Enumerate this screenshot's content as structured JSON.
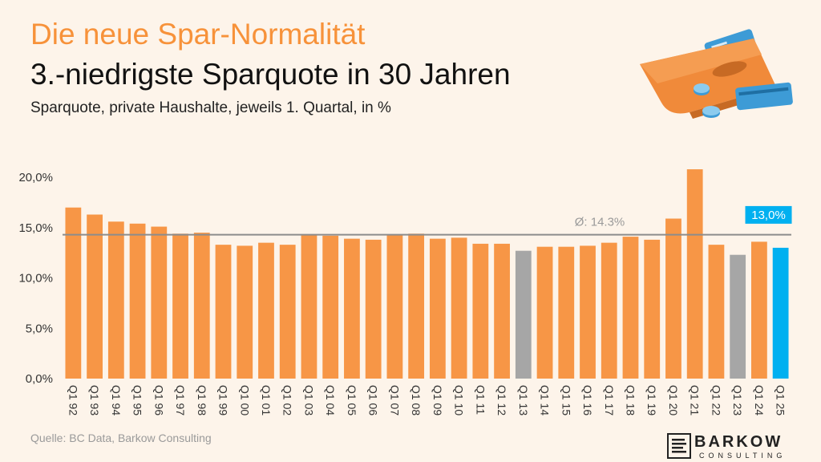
{
  "title": "Die neue Spar-Normalität",
  "headline": "3.-niedrigste Sparquote in 30 Jahren",
  "subtitle": "Sparquote, private Haushalte, jeweils 1. Quartal, in %",
  "source": "Quelle: BC Data, Barkow Consulting",
  "logo": {
    "name": "BARKOW",
    "sub": "CONSULTING"
  },
  "colors": {
    "default": "#f79646",
    "grey": "#a6a6a6",
    "highlight": "#00b0f0",
    "avgline": "#8c8c8c",
    "axis_text": "#333333"
  },
  "chart_data": {
    "type": "bar",
    "categories": [
      "Q1 92",
      "Q1 93",
      "Q1 94",
      "Q1 95",
      "Q1 96",
      "Q1 97",
      "Q1 98",
      "Q1 99",
      "Q1 00",
      "Q1 01",
      "Q1 02",
      "Q1 03",
      "Q1 04",
      "Q1 05",
      "Q1 06",
      "Q1 07",
      "Q1 08",
      "Q1 09",
      "Q1 10",
      "Q1 11",
      "Q1 12",
      "Q1 13",
      "Q1 14",
      "Q1 15",
      "Q1 16",
      "Q1 17",
      "Q1 18",
      "Q1 19",
      "Q1 20",
      "Q1 21",
      "Q1 22",
      "Q1 23",
      "Q1 24",
      "Q1 25"
    ],
    "values": [
      17.0,
      16.3,
      15.6,
      15.4,
      15.1,
      14.4,
      14.5,
      13.3,
      13.2,
      13.5,
      13.3,
      14.3,
      14.2,
      13.9,
      13.8,
      14.3,
      14.4,
      13.9,
      14.0,
      13.4,
      13.4,
      12.7,
      13.1,
      13.1,
      13.2,
      13.5,
      14.1,
      13.8,
      15.9,
      20.8,
      13.3,
      12.3,
      13.6,
      13.0
    ],
    "bar_colors": [
      "default",
      "default",
      "default",
      "default",
      "default",
      "default",
      "default",
      "default",
      "default",
      "default",
      "default",
      "default",
      "default",
      "default",
      "default",
      "default",
      "default",
      "default",
      "default",
      "default",
      "default",
      "grey",
      "default",
      "default",
      "default",
      "default",
      "default",
      "default",
      "default",
      "default",
      "default",
      "grey",
      "default",
      "highlight"
    ],
    "ylim": [
      0,
      22
    ],
    "yticks": [
      "0,0%",
      "5,0%",
      "10,0%",
      "15,0%",
      "20,0%"
    ],
    "ytick_values": [
      0,
      5,
      10,
      15,
      20
    ],
    "average": {
      "value": 14.3,
      "label": "Ø: 14.3%"
    },
    "highlight_label": "13,0%",
    "xlabel": "",
    "ylabel": "",
    "grid": false
  }
}
